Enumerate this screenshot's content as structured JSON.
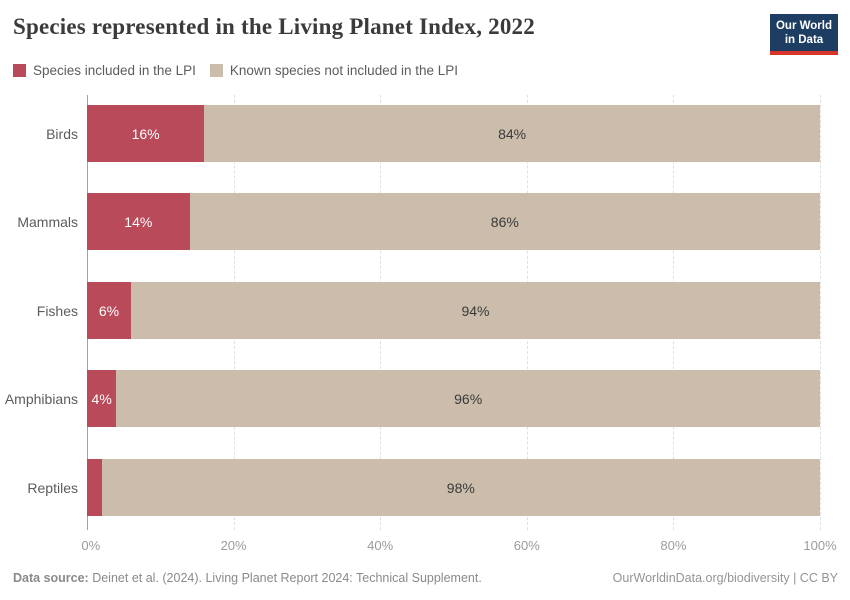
{
  "header": {
    "title": "Species represented in the Living Planet Index, 2022",
    "logo": {
      "line1": "Our World",
      "line2": "in Data",
      "bg_color": "#1d3d63",
      "accent_color": "#d8352a"
    }
  },
  "legend": [
    {
      "label": "Species included in the LPI",
      "color": "#b84a5a"
    },
    {
      "label": "Known species not included in the LPI",
      "color": "#cbbcab"
    }
  ],
  "chart_data": {
    "type": "bar",
    "orientation": "horizontal",
    "stacked": true,
    "title": "Species represented in the Living Planet Index, 2022",
    "categories": [
      "Birds",
      "Mammals",
      "Fishes",
      "Amphibians",
      "Reptiles"
    ],
    "series": [
      {
        "name": "Species included in the LPI",
        "color": "#b84a5a",
        "values": [
          16,
          14,
          6,
          4,
          2
        ]
      },
      {
        "name": "Known species not included in the LPI",
        "color": "#cbbcab",
        "values": [
          84,
          86,
          94,
          96,
          98
        ]
      }
    ],
    "value_suffix": "%",
    "xlabel": "",
    "ylabel": "",
    "xlim": [
      0,
      100
    ],
    "x_ticks": [
      "0%",
      "20%",
      "40%",
      "60%",
      "80%",
      "100%"
    ],
    "grid": "vertical-dashed",
    "legend_position": "top-left"
  },
  "footer": {
    "source_label": "Data source:",
    "source_text": " Deinet et al. (2024). Living Planet Report 2024: Technical Supplement.",
    "link": "OurWorldinData.org/biodiversity | CC BY"
  }
}
